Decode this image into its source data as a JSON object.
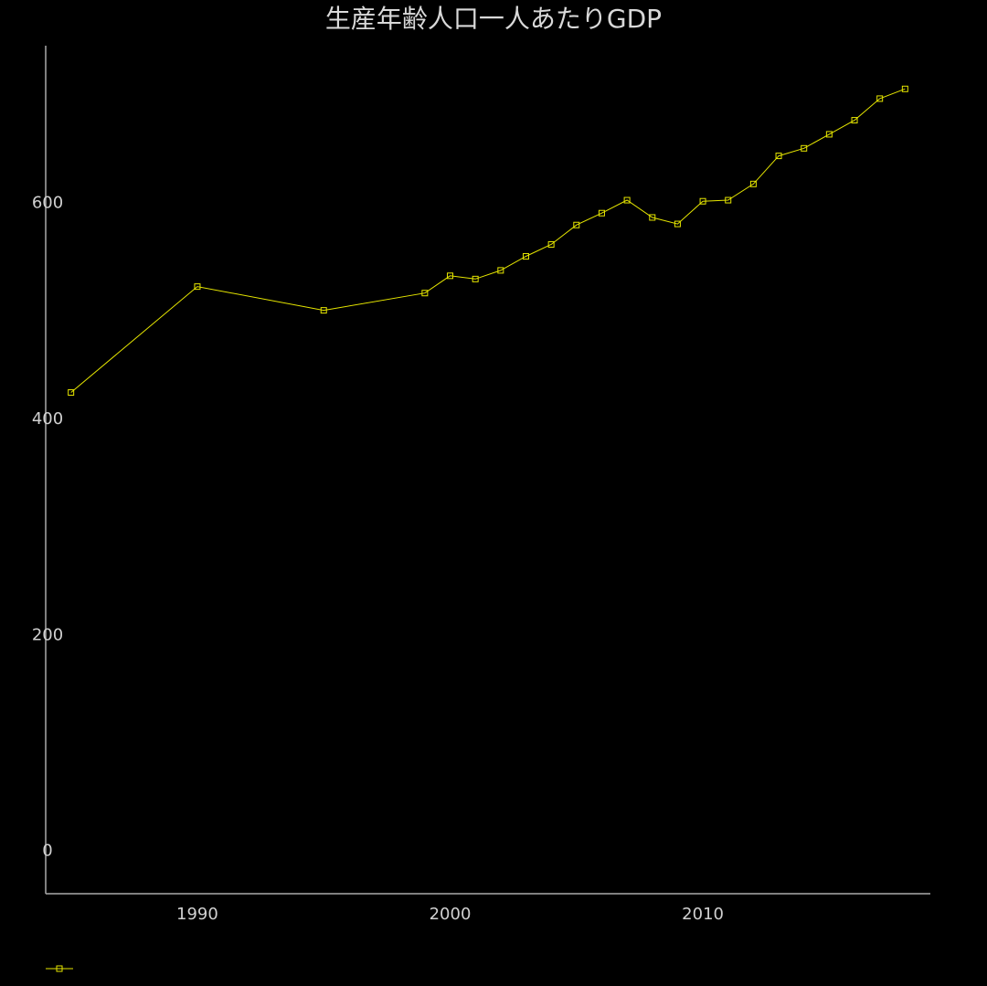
{
  "chart_data": {
    "type": "line",
    "title": "生産年齢人口一人あたりGDP",
    "xlabel": "",
    "ylabel": "",
    "xlim": [
      1984,
      2019
    ],
    "ylim": [
      -40,
      745
    ],
    "xticks": [
      1990,
      2000,
      2010
    ],
    "yticks": [
      0,
      200,
      400,
      600
    ],
    "grid": false,
    "legend": "bottom-left",
    "colors": {
      "background": "#000000",
      "line": "#e6e600",
      "axis": "#aaaaaa",
      "text": "#d9d9d9"
    },
    "series": [
      {
        "x": [
          1985,
          1990,
          1995,
          1999,
          2000,
          2001,
          2002,
          2003,
          2004,
          2005,
          2006,
          2007,
          2008,
          2009,
          2010,
          2011,
          2012,
          2013,
          2014,
          2015,
          2016,
          2017,
          2018
        ],
        "values": [
          424,
          522,
          500,
          516,
          532,
          529,
          537,
          550,
          561,
          579,
          590,
          602,
          586,
          580,
          601,
          602,
          617,
          643,
          650,
          663,
          676,
          696,
          705
        ]
      }
    ]
  }
}
